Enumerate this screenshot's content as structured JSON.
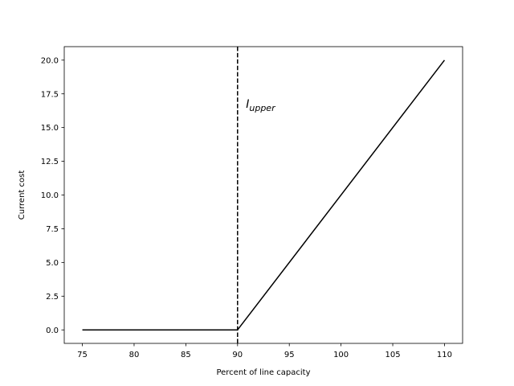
{
  "chart_data": {
    "type": "line",
    "title": "",
    "xlabel": "Percent of line capacity",
    "ylabel": "Current cost",
    "xlim": [
      73.25,
      111.75
    ],
    "ylim": [
      -1.0,
      21.0
    ],
    "xticks": [
      75,
      80,
      85,
      90,
      95,
      100,
      105,
      110
    ],
    "xtick_labels": [
      "75",
      "80",
      "85",
      "90",
      "95",
      "100",
      "105",
      "110"
    ],
    "yticks": [
      0,
      2.5,
      5,
      7.5,
      10,
      12.5,
      15,
      17.5,
      20
    ],
    "ytick_labels": [
      "0.0",
      "2.5",
      "5.0",
      "7.5",
      "10.0",
      "12.5",
      "15.0",
      "17.5",
      "20.0"
    ],
    "grid": false,
    "series": [
      {
        "x": [
          75,
          90,
          110
        ],
        "y": [
          0,
          0,
          20
        ],
        "color": "#000000",
        "style": "solid"
      }
    ],
    "vlines": [
      {
        "x": 90,
        "color": "#000000",
        "style": "dashed"
      }
    ],
    "annotations": [
      {
        "text_base": "I",
        "text_sub": "upper",
        "x": 90.5,
        "y": 16.7
      }
    ]
  }
}
